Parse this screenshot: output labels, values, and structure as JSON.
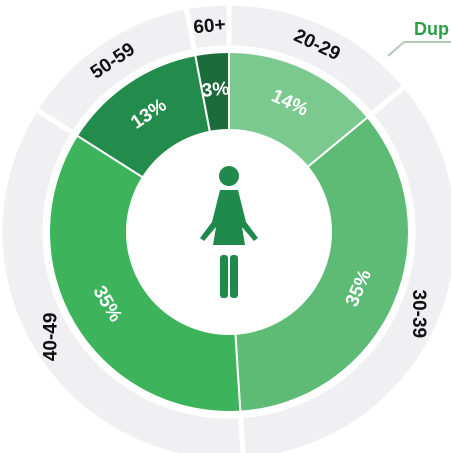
{
  "chart_data": {
    "type": "donut",
    "title": "Dup",
    "categories": [
      "20-29",
      "30-39",
      "40-49",
      "50-59",
      "60+"
    ],
    "values": [
      14,
      35,
      35,
      13,
      3
    ],
    "value_labels": [
      "14%",
      "35%",
      "35%",
      "13%",
      "3%"
    ],
    "colors": [
      "#7cc990",
      "#5dbb76",
      "#3db35b",
      "#238b4c",
      "#1c6b3b"
    ]
  }
}
